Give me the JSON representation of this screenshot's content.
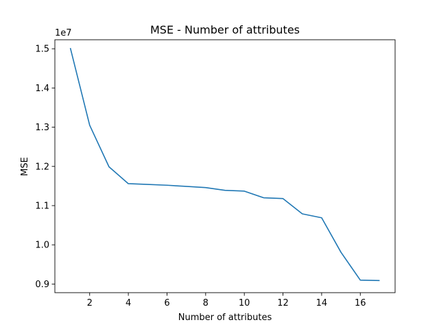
{
  "chart_data": {
    "type": "line",
    "title": "MSE - Number of attributes",
    "xlabel": "Number of attributes",
    "ylabel": "MSE",
    "y_offset_label": "1e7",
    "xlim": [
      0.2,
      17.8
    ],
    "ylim": [
      8.78,
      15.23
    ],
    "x_ticks": [
      2,
      4,
      6,
      8,
      10,
      12,
      14,
      16
    ],
    "x_tick_labels": [
      "2",
      "4",
      "6",
      "8",
      "10",
      "12",
      "14",
      "16"
    ],
    "y_ticks": [
      9.0,
      10.0,
      11.0,
      12.0,
      13.0,
      14.0,
      15.0
    ],
    "y_tick_labels": [
      "0.9",
      "1.0",
      "1.1",
      "1.2",
      "1.3",
      "1.4",
      "1.5"
    ],
    "grid": false,
    "series": [
      {
        "color": "#1f77b4",
        "x": [
          1,
          2,
          3,
          4,
          5,
          6,
          7,
          8,
          9,
          10,
          11,
          12,
          13,
          14,
          15,
          16,
          17
        ],
        "y": [
          15.02,
          13.05,
          11.99,
          11.56,
          11.54,
          11.52,
          11.49,
          11.46,
          11.39,
          11.37,
          11.2,
          11.18,
          10.79,
          10.69,
          9.81,
          9.1,
          9.09
        ]
      }
    ]
  }
}
